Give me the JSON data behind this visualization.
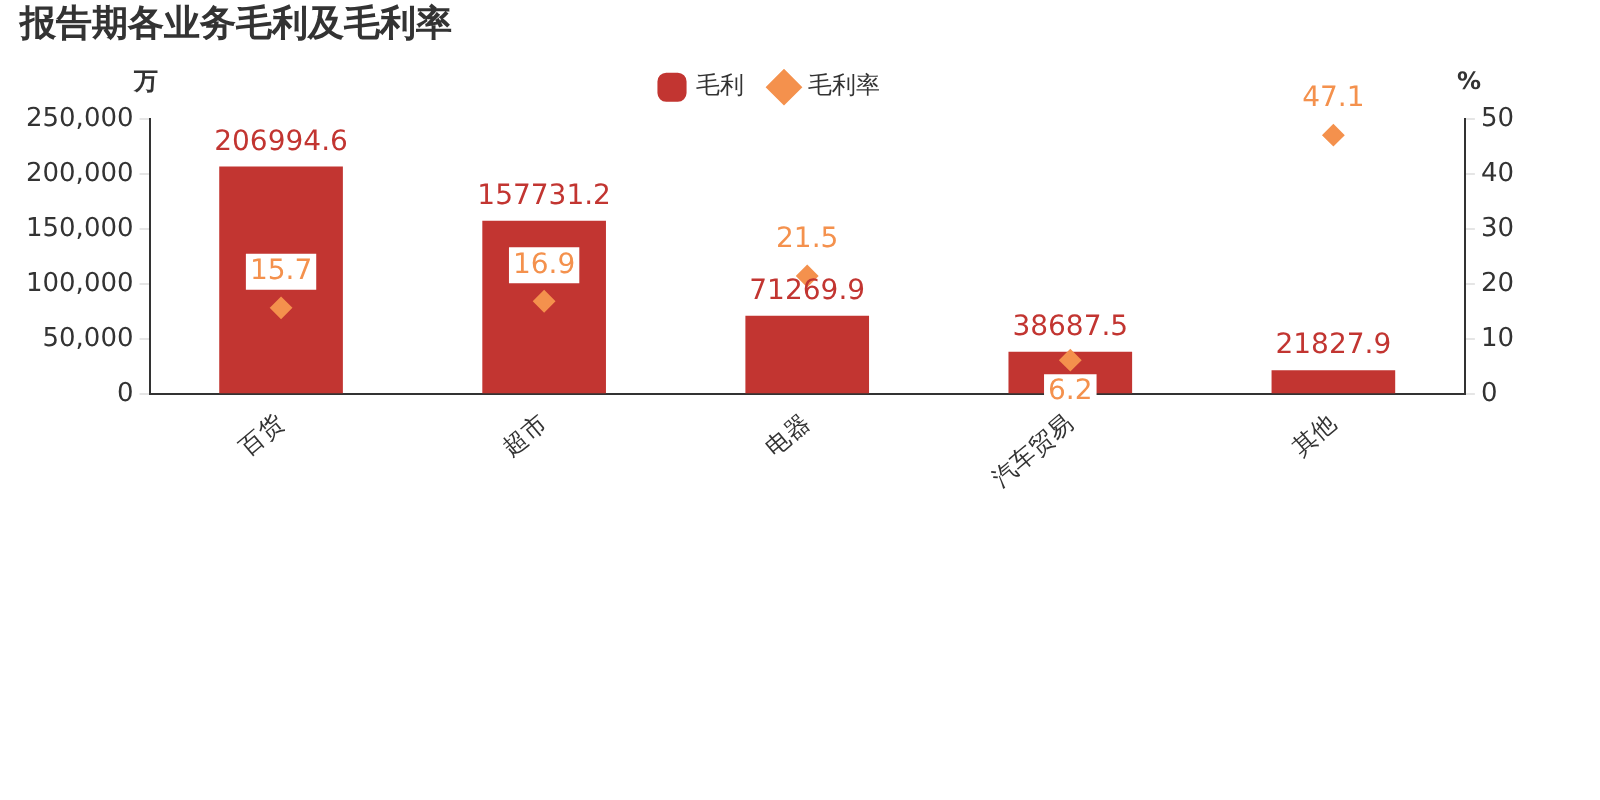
{
  "chart_data": {
    "type": "bar",
    "title": "报告期各业务毛利及毛利率",
    "ylabel": "万",
    "y2label": "%",
    "categories": [
      "百货",
      "超市",
      "电器",
      "汽车贸易",
      "其他"
    ],
    "series": [
      {
        "name": "毛利",
        "color": "#c23531",
        "values": [
          206994.6,
          157731.2,
          71269.9,
          38687.5,
          21827.9
        ]
      },
      {
        "name": "毛利率",
        "type": "scatter",
        "axis": "y2",
        "marker": "diamond",
        "color": "#f4914d",
        "values": [
          15.7,
          16.9,
          21.5,
          6.2,
          47.1
        ]
      }
    ],
    "ylim": [
      0,
      250000
    ],
    "yticks": [
      0,
      {
        "value": 50000,
        "label": "50,000"
      },
      {
        "value": 100000,
        "label": "100,000"
      },
      {
        "value": 150000,
        "label": "150,000"
      },
      {
        "value": 200000,
        "label": "200,000"
      },
      {
        "value": 250000,
        "label": "250,000"
      }
    ],
    "y2lim": [
      0,
      50
    ],
    "y2ticks": [
      0,
      10,
      20,
      30,
      40,
      50
    ],
    "grid": false,
    "legend": "top",
    "data_labels": true
  }
}
